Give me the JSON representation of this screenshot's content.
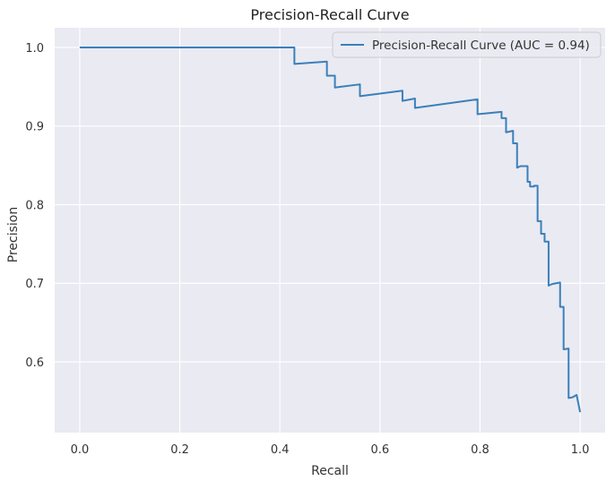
{
  "chart_data": {
    "type": "line",
    "title": "Precision-Recall Curve",
    "xlabel": "Recall",
    "ylabel": "Precision",
    "xlim": [
      -0.05,
      1.05
    ],
    "ylim": [
      0.51,
      1.025
    ],
    "xticks": [
      0.0,
      0.2,
      0.4,
      0.6,
      0.8,
      1.0
    ],
    "xtick_labels": [
      "0.0",
      "0.2",
      "0.4",
      "0.6",
      "0.8",
      "1.0"
    ],
    "yticks": [
      0.6,
      0.7,
      0.8,
      0.9,
      1.0
    ],
    "ytick_labels": [
      "0.6",
      "0.7",
      "0.8",
      "0.9",
      "1.0"
    ],
    "grid": true,
    "legend_position": "top-right",
    "series": [
      {
        "name": "Precision-Recall Curve (AUC = 0.94)",
        "color": "#3a80ba",
        "x": [
          0.0,
          0.429,
          0.429,
          0.494,
          0.494,
          0.51,
          0.51,
          0.56,
          0.56,
          0.645,
          0.645,
          0.67,
          0.67,
          0.795,
          0.795,
          0.843,
          0.843,
          0.852,
          0.852,
          0.866,
          0.866,
          0.874,
          0.874,
          0.881,
          0.881,
          0.895,
          0.895,
          0.9,
          0.9,
          0.908,
          0.908,
          0.915,
          0.915,
          0.922,
          0.922,
          0.929,
          0.929,
          0.937,
          0.937,
          0.944,
          0.944,
          0.96,
          0.96,
          0.967,
          0.967,
          0.977,
          0.977,
          0.985,
          0.985,
          0.993,
          0.993,
          1.0
        ],
        "y": [
          1.0,
          1.0,
          0.979,
          0.982,
          0.964,
          0.964,
          0.949,
          0.953,
          0.938,
          0.945,
          0.932,
          0.935,
          0.923,
          0.934,
          0.915,
          0.918,
          0.91,
          0.91,
          0.892,
          0.894,
          0.878,
          0.878,
          0.847,
          0.849,
          0.849,
          0.849,
          0.829,
          0.829,
          0.823,
          0.823,
          0.824,
          0.824,
          0.779,
          0.779,
          0.763,
          0.763,
          0.753,
          0.753,
          0.697,
          0.699,
          0.699,
          0.701,
          0.67,
          0.67,
          0.616,
          0.617,
          0.554,
          0.555,
          0.555,
          0.558,
          0.558,
          0.536
        ]
      }
    ]
  }
}
